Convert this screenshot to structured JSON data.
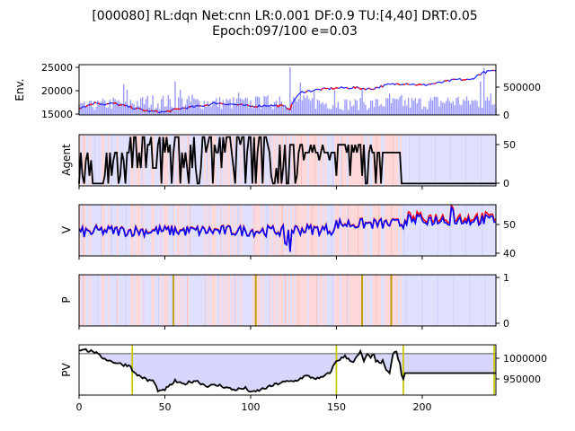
{
  "figure": {
    "title_line1": "[000080] RL:dqn Net:cnn LR:0.001 DF:0.9 TU:[4,40] DRT:0.05",
    "title_line2": "Epoch:097/100 e=0.03"
  },
  "colors": {
    "price_line": "#1f1fff",
    "price_up": "#ff0000",
    "volume": "#9999ff",
    "agent_line": "#000000",
    "v_line_1": "#ff0000",
    "v_line_2": "#0000ff",
    "p_marker": "#b8a000",
    "pv_line": "#000000",
    "pv_reference": "#808080",
    "pv_fill": "#d6d6ff",
    "pv_marker": "#c8c800",
    "bg_buy": "#ffd9d9",
    "bg_sell": "#e0e0ff"
  },
  "chart_data": [
    {
      "type": "line",
      "name": "env",
      "ylabel": "Env.",
      "xlim": [
        0,
        243
      ],
      "ylim": [
        15000,
        25500
      ],
      "yticks": [
        "15000",
        "20000",
        "25000"
      ],
      "ylim_right": [
        0,
        900000
      ],
      "yticks_right": [
        "0",
        "500000"
      ],
      "price_keypoints": [
        [
          0,
          16500
        ],
        [
          5,
          17000
        ],
        [
          10,
          17600
        ],
        [
          15,
          17200
        ],
        [
          20,
          17400
        ],
        [
          30,
          16600
        ],
        [
          40,
          15800
        ],
        [
          50,
          15600
        ],
        [
          60,
          16400
        ],
        [
          70,
          16800
        ],
        [
          80,
          17500
        ],
        [
          90,
          17200
        ],
        [
          100,
          16800
        ],
        [
          110,
          17000
        ],
        [
          118,
          16900
        ],
        [
          123,
          16300
        ],
        [
          126,
          18500
        ],
        [
          130,
          19800
        ],
        [
          140,
          20300
        ],
        [
          150,
          20600
        ],
        [
          160,
          20700
        ],
        [
          170,
          20400
        ],
        [
          180,
          21300
        ],
        [
          190,
          21600
        ],
        [
          200,
          21200
        ],
        [
          210,
          21700
        ],
        [
          220,
          22400
        ],
        [
          228,
          22300
        ],
        [
          235,
          23800
        ],
        [
          240,
          24200
        ],
        [
          243,
          24000
        ]
      ],
      "volume_keypoints": [
        [
          0,
          150000
        ],
        [
          20,
          220000
        ],
        [
          40,
          250000
        ],
        [
          60,
          240000
        ],
        [
          80,
          230000
        ],
        [
          100,
          220000
        ],
        [
          120,
          260000
        ],
        [
          140,
          230000
        ],
        [
          160,
          200000
        ],
        [
          180,
          220000
        ],
        [
          200,
          230000
        ],
        [
          220,
          260000
        ],
        [
          243,
          230000
        ]
      ],
      "volume_spikes": [
        [
          26,
          550000
        ],
        [
          28,
          450000
        ],
        [
          36,
          300000
        ],
        [
          56,
          600000
        ],
        [
          59,
          450000
        ],
        [
          66,
          360000
        ],
        [
          93,
          400000
        ],
        [
          105,
          320000
        ],
        [
          117,
          330000
        ],
        [
          123,
          850000
        ],
        [
          129,
          580000
        ],
        [
          137,
          420000
        ],
        [
          149,
          440000
        ],
        [
          165,
          470000
        ],
        [
          181,
          380000
        ],
        [
          188,
          360000
        ],
        [
          226,
          330000
        ],
        [
          234,
          600000
        ],
        [
          236,
          840000
        ],
        [
          240,
          380000
        ]
      ]
    },
    {
      "type": "line",
      "name": "agent",
      "ylabel": "Agent",
      "xlim": [
        0,
        243
      ],
      "ylim": [
        -3,
        63
      ],
      "yticks": [
        "0",
        "50"
      ]
    },
    {
      "type": "line",
      "name": "v",
      "ylabel": "V",
      "xlim": [
        0,
        243
      ],
      "ylim": [
        38.5,
        57
      ],
      "yticks": [
        "40",
        "50"
      ]
    },
    {
      "type": "line",
      "name": "p",
      "ylabel": "P",
      "xlim": [
        0,
        243
      ],
      "ylim": [
        -0.05,
        1.05
      ],
      "yticks": [
        "0",
        "1"
      ],
      "markers_x": [
        55,
        103,
        165,
        182
      ]
    },
    {
      "type": "area",
      "name": "pv",
      "ylabel": "PV",
      "xlim": [
        0,
        243
      ],
      "xticks": [
        "0",
        "50",
        "100",
        "150",
        "200"
      ],
      "ylim": [
        915000,
        1018000
      ],
      "yticks": [
        "950000",
        "1000000"
      ],
      "reference": 1000000,
      "markers_x": [
        31,
        150,
        189,
        242
      ],
      "keypoints": [
        [
          0,
          1008000
        ],
        [
          3,
          1010000
        ],
        [
          6,
          1004000
        ],
        [
          8,
          1006000
        ],
        [
          12,
          995000
        ],
        [
          18,
          985000
        ],
        [
          25,
          978000
        ],
        [
          30,
          975000
        ],
        [
          32,
          960000
        ],
        [
          36,
          953000
        ],
        [
          40,
          945000
        ],
        [
          43,
          945000
        ],
        [
          46,
          925000
        ],
        [
          48,
          922000
        ],
        [
          52,
          931000
        ],
        [
          56,
          944000
        ],
        [
          60,
          937000
        ],
        [
          68,
          945000
        ],
        [
          74,
          934000
        ],
        [
          82,
          935000
        ],
        [
          90,
          926000
        ],
        [
          97,
          929000
        ],
        [
          101,
          920000
        ],
        [
          110,
          931000
        ],
        [
          118,
          941000
        ],
        [
          126,
          944000
        ],
        [
          132,
          954000
        ],
        [
          140,
          948000
        ],
        [
          146,
          960000
        ],
        [
          150,
          985000
        ],
        [
          155,
          994000
        ],
        [
          160,
          983000
        ],
        [
          164,
          1003000
        ],
        [
          166,
          985000
        ],
        [
          168,
          997000
        ],
        [
          170,
          991000
        ],
        [
          172,
          1000000
        ],
        [
          173,
          986000
        ],
        [
          175,
          980000
        ],
        [
          177,
          984000
        ],
        [
          179,
          964000
        ],
        [
          180,
          962000
        ],
        [
          181,
          962000
        ],
        [
          183,
          998000
        ],
        [
          185,
          1005000
        ],
        [
          186,
          986000
        ],
        [
          187,
          980000
        ],
        [
          188,
          956000
        ],
        [
          189,
          948000
        ],
        [
          190,
          960000
        ],
        [
          243,
          960000
        ]
      ]
    }
  ]
}
